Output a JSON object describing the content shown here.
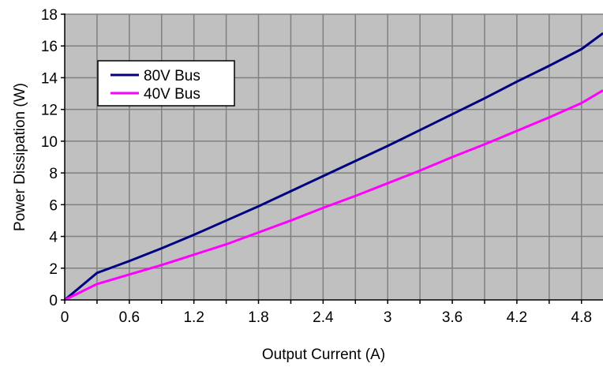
{
  "chart_data": {
    "type": "line",
    "title": "",
    "xlabel": "Output Current (A)",
    "ylabel": "Power Dissipation (W)",
    "xlim": [
      0,
      5
    ],
    "ylim": [
      0,
      18
    ],
    "x_ticks": [
      0,
      0.6,
      1.2,
      1.8,
      2.4,
      3,
      3.6,
      4.2,
      4.8
    ],
    "x_tick_labels": [
      "0",
      "0.6",
      "1.2",
      "1.8",
      "2.4",
      "3",
      "3.6",
      "4.2",
      "4.8"
    ],
    "y_ticks": [
      0,
      2,
      4,
      6,
      8,
      10,
      12,
      14,
      16,
      18
    ],
    "y_tick_labels": [
      "0",
      "2",
      "4",
      "6",
      "8",
      "10",
      "12",
      "14",
      "16",
      "18"
    ],
    "x_minor_step": 0.3,
    "grid": true,
    "legend_position": "top-left",
    "plot_background": "#c0c0c0",
    "grid_color": "#808080",
    "series": [
      {
        "name": "80V Bus",
        "color": "#000080",
        "x": [
          0,
          0.3,
          0.6,
          0.9,
          1.2,
          1.5,
          1.8,
          2.1,
          2.4,
          2.7,
          3.0,
          3.3,
          3.6,
          3.9,
          4.2,
          4.5,
          4.8,
          5.0
        ],
        "y": [
          0,
          1.7,
          2.45,
          3.25,
          4.1,
          5.0,
          5.9,
          6.85,
          7.8,
          8.75,
          9.7,
          10.7,
          11.7,
          12.7,
          13.75,
          14.75,
          15.8,
          16.8
        ]
      },
      {
        "name": "40V Bus",
        "color": "#ff00ff",
        "x": [
          0,
          0.3,
          0.6,
          0.9,
          1.2,
          1.5,
          1.8,
          2.1,
          2.4,
          2.7,
          3.0,
          3.3,
          3.6,
          3.9,
          4.2,
          4.5,
          4.8,
          5.0
        ],
        "y": [
          0,
          1.0,
          1.6,
          2.2,
          2.85,
          3.5,
          4.25,
          5.0,
          5.8,
          6.55,
          7.35,
          8.15,
          9.0,
          9.8,
          10.65,
          11.5,
          12.4,
          13.2
        ]
      }
    ]
  }
}
